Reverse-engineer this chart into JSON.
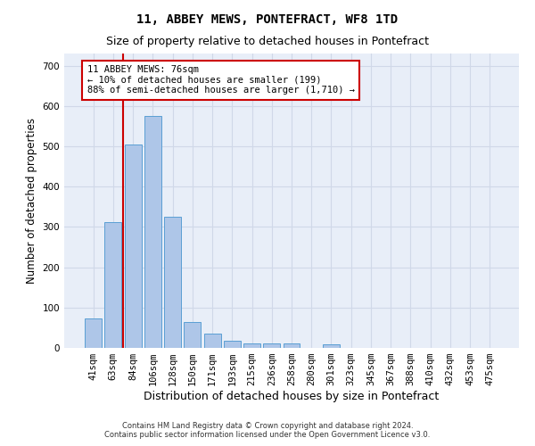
{
  "title": "11, ABBEY MEWS, PONTEFRACT, WF8 1TD",
  "subtitle": "Size of property relative to detached houses in Pontefract",
  "xlabel": "Distribution of detached houses by size in Pontefract",
  "ylabel": "Number of detached properties",
  "bar_categories": [
    "41sqm",
    "63sqm",
    "84sqm",
    "106sqm",
    "128sqm",
    "150sqm",
    "171sqm",
    "193sqm",
    "215sqm",
    "236sqm",
    "258sqm",
    "280sqm",
    "301sqm",
    "323sqm",
    "345sqm",
    "367sqm",
    "388sqm",
    "410sqm",
    "432sqm",
    "453sqm",
    "475sqm"
  ],
  "bar_values": [
    72,
    312,
    505,
    575,
    325,
    65,
    35,
    18,
    12,
    11,
    11,
    0,
    8,
    0,
    0,
    0,
    0,
    0,
    0,
    0,
    0
  ],
  "bar_color": "#aec6e8",
  "bar_edge_color": "#5a9fd4",
  "vline_color": "#cc0000",
  "annotation_text": "11 ABBEY MEWS: 76sqm\n← 10% of detached houses are smaller (199)\n88% of semi-detached houses are larger (1,710) →",
  "annotation_box_color": "#ffffff",
  "annotation_box_edge": "#cc0000",
  "ylim": [
    0,
    730
  ],
  "yticks": [
    0,
    100,
    200,
    300,
    400,
    500,
    600,
    700
  ],
  "grid_color": "#d0d8e8",
  "bg_color": "#e8eef8",
  "footnote": "Contains HM Land Registry data © Crown copyright and database right 2024.\nContains public sector information licensed under the Open Government Licence v3.0.",
  "title_fontsize": 10,
  "subtitle_fontsize": 9,
  "xlabel_fontsize": 9,
  "ylabel_fontsize": 8.5,
  "tick_fontsize": 7.5,
  "footnote_fontsize": 6
}
